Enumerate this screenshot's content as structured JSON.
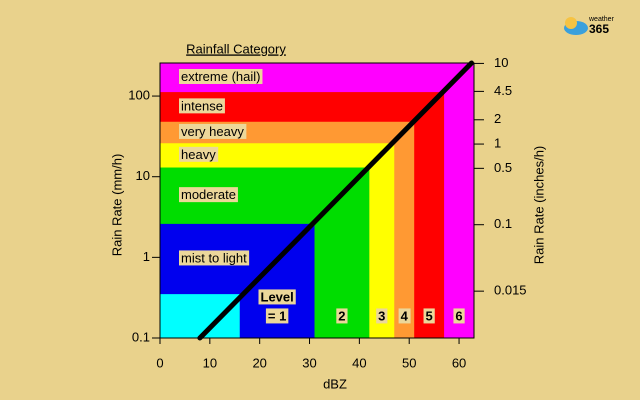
{
  "logo": {
    "top": "weather",
    "bottom": "365"
  },
  "chart_data": {
    "type": "region",
    "title": "Rainfall Category",
    "x_label": "dBZ",
    "y_label": "Rain Rate (mm/h)",
    "y2_label": "Rain Rate (inches/h)",
    "level_heading": "Level",
    "xlim": [
      0,
      63
    ],
    "xticks": [
      0,
      10,
      20,
      30,
      40,
      50,
      60
    ],
    "ylim": [
      0.1,
      257
    ],
    "yticks": [
      0.1,
      1,
      10,
      100
    ],
    "log_scale": true,
    "y2lim": [
      0.003937,
      10.12
    ],
    "y2ticks": [
      10,
      4.5,
      2,
      1,
      0.5,
      0.1,
      0.015
    ],
    "categories": [
      {
        "name": "extreme (hail)",
        "level": "6",
        "color": "#ff00ff",
        "x": 63,
        "y": 257
      },
      {
        "name": "intense",
        "level": "5",
        "color": "#ff0000",
        "x": 57,
        "y": 112
      },
      {
        "name": "very heavy",
        "level": "4",
        "color": "#ff9933",
        "x": 51,
        "y": 48
      },
      {
        "name": "heavy",
        "level": "3",
        "color": "#ffff00",
        "x": 47,
        "y": 26
      },
      {
        "name": "moderate",
        "level": "2",
        "color": "#00dd00",
        "x": 42,
        "y": 13
      },
      {
        "name": "mist to light",
        "level": "= 1",
        "color": "#0000ee",
        "x": 31,
        "y": 2.6
      },
      {
        "name": null,
        "level": null,
        "color": "#00ffff",
        "x": 16,
        "y": 0.35
      }
    ],
    "series": [
      {
        "name": null,
        "color": "#000000",
        "x": [
          8,
          62.5
        ],
        "values": [
          0.1,
          257
        ]
      }
    ]
  }
}
